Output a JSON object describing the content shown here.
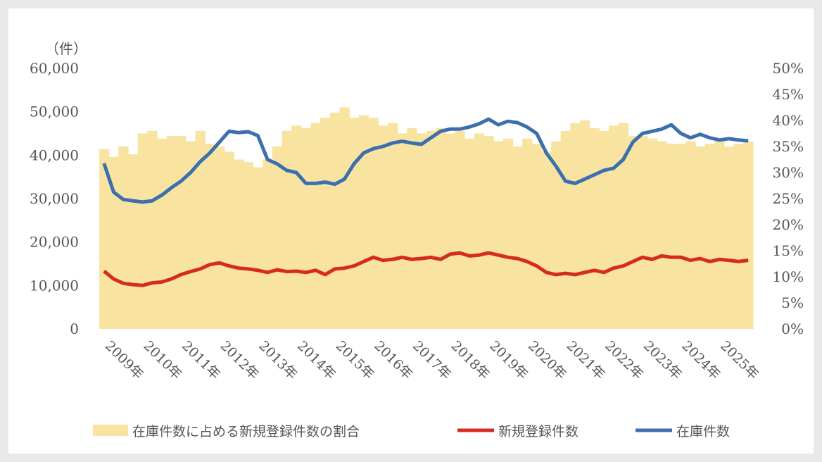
{
  "chart_data": {
    "type": "bar+line",
    "left_unit_label": "（件）",
    "left_axis": {
      "min": 0,
      "max": 60000,
      "ticks": [
        "0",
        "10,000",
        "20,000",
        "30,000",
        "40,000",
        "50,000",
        "60,000"
      ]
    },
    "right_axis": {
      "min": 0,
      "max": 50,
      "ticks": [
        "0%",
        "5%",
        "10%",
        "15%",
        "20%",
        "25%",
        "30%",
        "35%",
        "40%",
        "45%",
        "50%"
      ]
    },
    "x_tick_labels": [
      "2009年",
      "2010年",
      "2011年",
      "2012年",
      "2013年",
      "2014年",
      "2015年",
      "2016年",
      "2017年",
      "2018年",
      "2019年",
      "2020年",
      "2021年",
      "2022年",
      "2023年",
      "2024年",
      "2025年"
    ],
    "x_period": "quarterly, 2009 Q1 – 2025 Q4",
    "grid": false,
    "legend_position": "bottom",
    "series": [
      {
        "name": "在庫件数に占める新規登録件数の割合",
        "type": "bar",
        "axis": "right",
        "unit": "%",
        "color": "#f8e3a1",
        "values": [
          34.5,
          33.0,
          35.0,
          33.5,
          37.5,
          38.0,
          36.5,
          37.0,
          37.0,
          36.0,
          38.0,
          35.5,
          35.0,
          34.0,
          32.5,
          32.0,
          31.0,
          32.5,
          35.0,
          38.0,
          39.0,
          38.5,
          39.5,
          40.5,
          41.5,
          42.5,
          40.5,
          41.0,
          40.5,
          39.0,
          39.5,
          37.5,
          38.5,
          37.5,
          38.0,
          38.5,
          37.5,
          38.0,
          36.5,
          37.5,
          37.0,
          36.0,
          36.5,
          35.0,
          36.5,
          35.5,
          34.0,
          36.0,
          38.0,
          39.5,
          40.0,
          38.5,
          38.0,
          39.0,
          39.5,
          37.0,
          37.0,
          36.5,
          36.0,
          35.5,
          35.5,
          36.0,
          35.0,
          35.5,
          36.0,
          35.0,
          35.5,
          36.0
        ]
      },
      {
        "name": "新規登録件数",
        "type": "line",
        "axis": "left",
        "color": "#d62b1f",
        "values": [
          13300,
          11500,
          10500,
          10200,
          10000,
          10600,
          10800,
          11500,
          12500,
          13200,
          13800,
          14800,
          15200,
          14500,
          14000,
          13800,
          13500,
          13000,
          13600,
          13200,
          13300,
          13000,
          13500,
          12500,
          13800,
          14000,
          14500,
          15500,
          16500,
          15800,
          16000,
          16500,
          16000,
          16200,
          16500,
          16000,
          17200,
          17500,
          16800,
          17000,
          17500,
          17000,
          16500,
          16200,
          15500,
          14500,
          13000,
          12500,
          12800,
          12500,
          13000,
          13500,
          13000,
          14000,
          14500,
          15500,
          16500,
          16000,
          16800,
          16500,
          16500,
          15800,
          16200,
          15500,
          16000,
          15800,
          15500,
          15800
        ]
      },
      {
        "name": "在庫件数",
        "type": "line",
        "axis": "left",
        "color": "#3b6fae",
        "values": [
          38100,
          31500,
          29800,
          29500,
          29200,
          29500,
          30800,
          32500,
          34000,
          36000,
          38500,
          40500,
          43000,
          45500,
          45200,
          45400,
          44500,
          39000,
          38000,
          36500,
          36000,
          33500,
          33500,
          33800,
          33300,
          34500,
          38000,
          40500,
          41500,
          42000,
          42800,
          43200,
          42800,
          42500,
          44000,
          45500,
          46000,
          46000,
          46500,
          47200,
          48300,
          47000,
          47800,
          47500,
          46500,
          45000,
          40500,
          37500,
          34000,
          33500,
          34500,
          35500,
          36500,
          37000,
          39000,
          43000,
          45000,
          45500,
          46000,
          47000,
          45000,
          44000,
          44800,
          44000,
          43500,
          43800,
          43500,
          43300
        ]
      }
    ]
  }
}
